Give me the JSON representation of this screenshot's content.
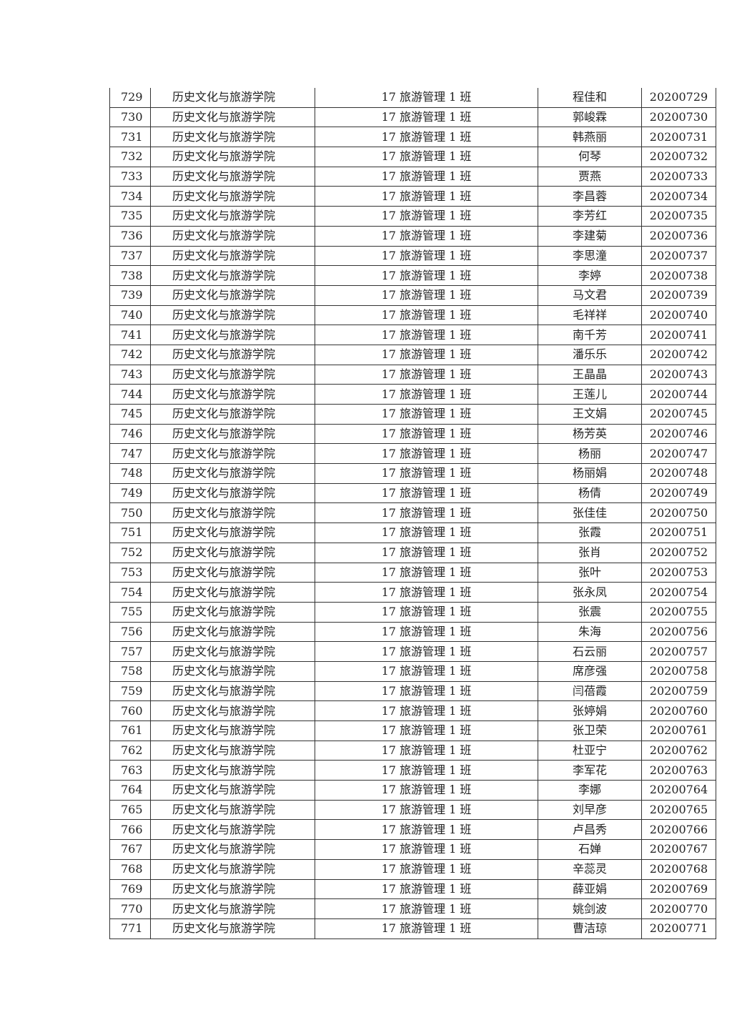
{
  "table": {
    "college": "历史文化与旅游学院",
    "class": "17 旅游管理 1 班",
    "rows": [
      {
        "no": "729",
        "name": "程佳和",
        "id": "20200729"
      },
      {
        "no": "730",
        "name": "郭峻霖",
        "id": "20200730"
      },
      {
        "no": "731",
        "name": "韩燕丽",
        "id": "20200731"
      },
      {
        "no": "732",
        "name": "何琴",
        "id": "20200732"
      },
      {
        "no": "733",
        "name": "贾燕",
        "id": "20200733"
      },
      {
        "no": "734",
        "name": "李昌蓉",
        "id": "20200734"
      },
      {
        "no": "735",
        "name": "李芳红",
        "id": "20200735"
      },
      {
        "no": "736",
        "name": "李建菊",
        "id": "20200736"
      },
      {
        "no": "737",
        "name": "李思潼",
        "id": "20200737"
      },
      {
        "no": "738",
        "name": "李婷",
        "id": "20200738"
      },
      {
        "no": "739",
        "name": "马文君",
        "id": "20200739"
      },
      {
        "no": "740",
        "name": "毛祥祥",
        "id": "20200740"
      },
      {
        "no": "741",
        "name": "南千芳",
        "id": "20200741"
      },
      {
        "no": "742",
        "name": "潘乐乐",
        "id": "20200742"
      },
      {
        "no": "743",
        "name": "王晶晶",
        "id": "20200743"
      },
      {
        "no": "744",
        "name": "王莲儿",
        "id": "20200744"
      },
      {
        "no": "745",
        "name": "王文娟",
        "id": "20200745"
      },
      {
        "no": "746",
        "name": "杨芳英",
        "id": "20200746"
      },
      {
        "no": "747",
        "name": "杨丽",
        "id": "20200747"
      },
      {
        "no": "748",
        "name": "杨丽娟",
        "id": "20200748"
      },
      {
        "no": "749",
        "name": "杨倩",
        "id": "20200749"
      },
      {
        "no": "750",
        "name": "张佳佳",
        "id": "20200750"
      },
      {
        "no": "751",
        "name": "张霞",
        "id": "20200751"
      },
      {
        "no": "752",
        "name": "张肖",
        "id": "20200752"
      },
      {
        "no": "753",
        "name": "张叶",
        "id": "20200753"
      },
      {
        "no": "754",
        "name": "张永凤",
        "id": "20200754"
      },
      {
        "no": "755",
        "name": "张震",
        "id": "20200755"
      },
      {
        "no": "756",
        "name": "朱海",
        "id": "20200756"
      },
      {
        "no": "757",
        "name": "石云丽",
        "id": "20200757"
      },
      {
        "no": "758",
        "name": "席彦强",
        "id": "20200758"
      },
      {
        "no": "759",
        "name": "闫蓓霞",
        "id": "20200759"
      },
      {
        "no": "760",
        "name": "张婷娟",
        "id": "20200760"
      },
      {
        "no": "761",
        "name": "张卫荣",
        "id": "20200761"
      },
      {
        "no": "762",
        "name": "杜亚宁",
        "id": "20200762"
      },
      {
        "no": "763",
        "name": "李军花",
        "id": "20200763"
      },
      {
        "no": "764",
        "name": "李娜",
        "id": "20200764"
      },
      {
        "no": "765",
        "name": "刘早彦",
        "id": "20200765"
      },
      {
        "no": "766",
        "name": "卢昌秀",
        "id": "20200766"
      },
      {
        "no": "767",
        "name": "石婵",
        "id": "20200767"
      },
      {
        "no": "768",
        "name": "辛蕊灵",
        "id": "20200768"
      },
      {
        "no": "769",
        "name": "薛亚娟",
        "id": "20200769"
      },
      {
        "no": "770",
        "name": "姚剑波",
        "id": "20200770"
      },
      {
        "no": "771",
        "name": "曹洁琼",
        "id": "20200771"
      }
    ]
  }
}
